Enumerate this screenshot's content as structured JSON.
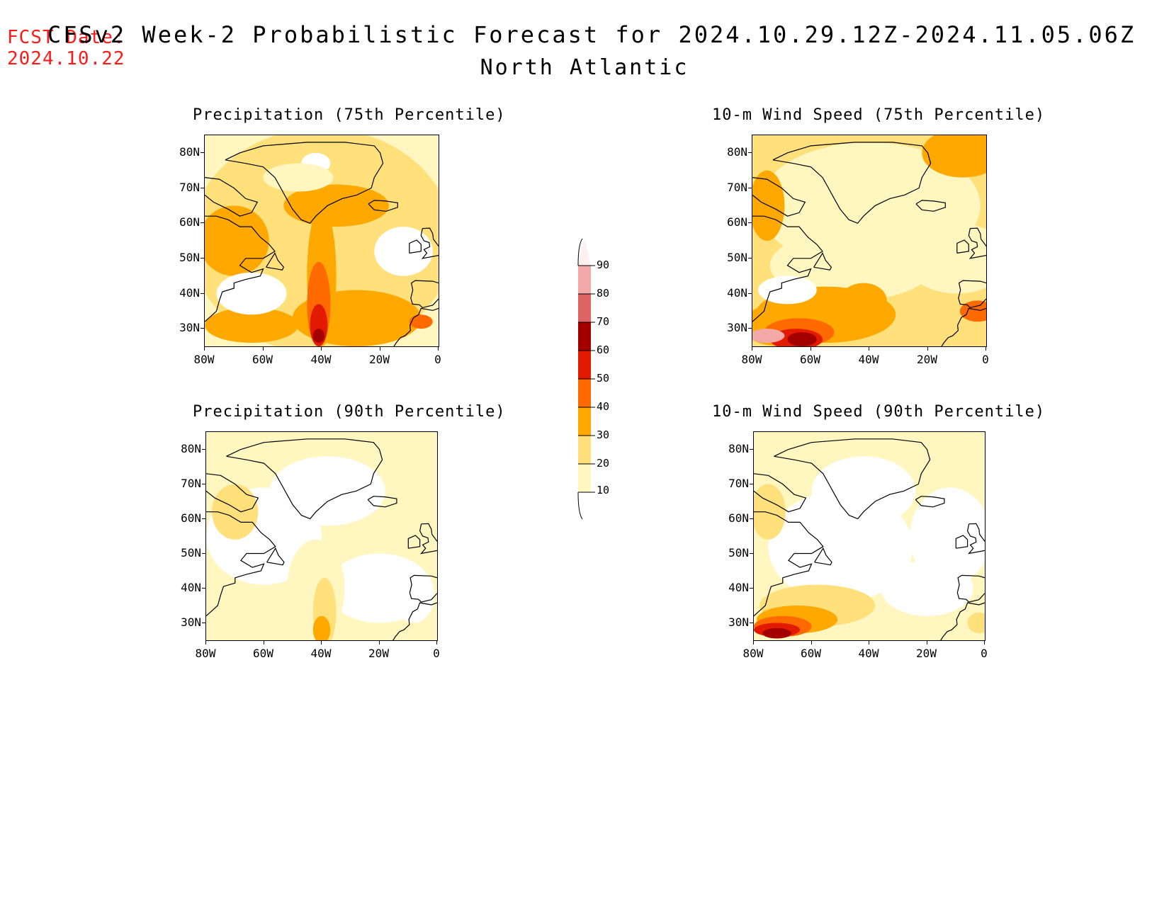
{
  "header": {
    "fcst_label": "FCST Date:",
    "fcst_date": "2024.10.22",
    "title": "CFSv2 Week-2 Probabilistic Forecast for 2024.10.29.12Z-2024.11.05.06Z",
    "region": "North Atlantic"
  },
  "axes": {
    "lat_labels": [
      "80N",
      "70N",
      "60N",
      "50N",
      "40N",
      "30N"
    ],
    "lon_labels": [
      "80W",
      "60W",
      "40W",
      "20W",
      "0"
    ]
  },
  "panels": [
    {
      "title": "Precipitation (75th Percentile)",
      "field": "precip75"
    },
    {
      "title": "10-m Wind Speed (75th Percentile)",
      "field": "wind75"
    },
    {
      "title": "Precipitation (90th Percentile)",
      "field": "precip90"
    },
    {
      "title": "10-m Wind Speed (90th Percentile)",
      "field": "wind90"
    }
  ],
  "colorbar": {
    "levels": [
      "10",
      "20",
      "30",
      "40",
      "50",
      "60",
      "70",
      "80",
      "90"
    ],
    "colors": [
      "#ffffff",
      "#fff6c0",
      "#ffe07a",
      "#ffa800",
      "#ff6a00",
      "#e21a00",
      "#a50000",
      "#de6464",
      "#f4a9a9",
      "#fff0f0"
    ]
  }
}
